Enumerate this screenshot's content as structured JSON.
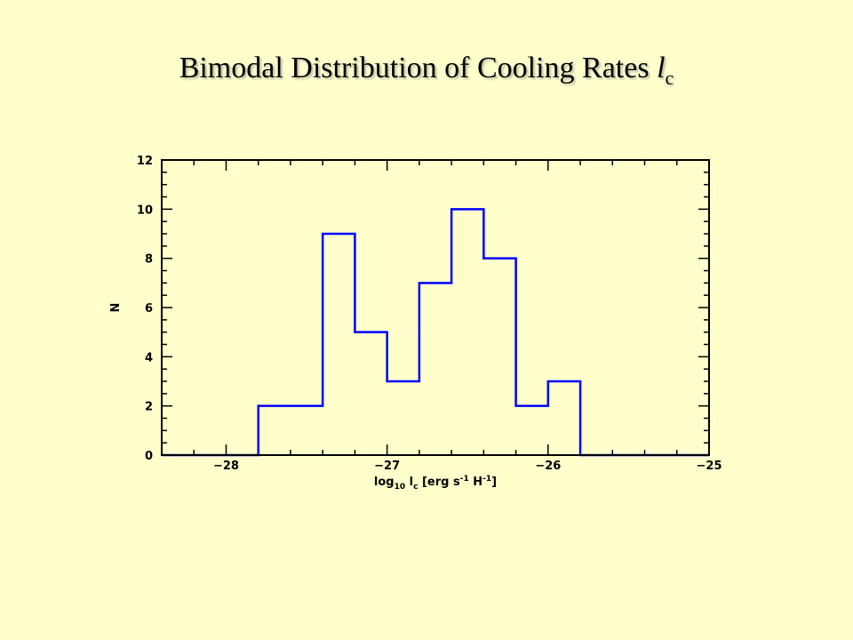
{
  "slide": {
    "title_main": "Bimodal Distribution of Cooling Rates ",
    "title_var": "l",
    "title_sub": "c"
  },
  "chart_data": {
    "type": "histogram-step",
    "xlabel_parts": [
      "log",
      "10",
      " l",
      "c",
      " [erg s",
      "-1",
      " H",
      "-1",
      "]"
    ],
    "ylabel": "N",
    "xlim": [
      -28.4,
      -25.0
    ],
    "ylim": [
      0,
      12
    ],
    "xticks": [
      -28,
      -27,
      -26,
      -25
    ],
    "xtick_labels": [
      "−28",
      "−27",
      "−26",
      "−25"
    ],
    "yticks": [
      0,
      2,
      4,
      6,
      8,
      10,
      12
    ],
    "ytick_labels": [
      "0",
      "2",
      "4",
      "6",
      "8",
      "10",
      "12"
    ],
    "bin_edges": [
      -28.4,
      -27.8,
      -27.4,
      -27.2,
      -27.0,
      -26.8,
      -26.6,
      -26.4,
      -26.2,
      -26.0,
      -25.8,
      -25.0
    ],
    "counts": [
      0,
      2,
      9,
      5,
      3,
      7,
      10,
      8,
      2,
      3,
      0
    ],
    "line_color": "#0000ff",
    "frame_color": "#000000"
  }
}
